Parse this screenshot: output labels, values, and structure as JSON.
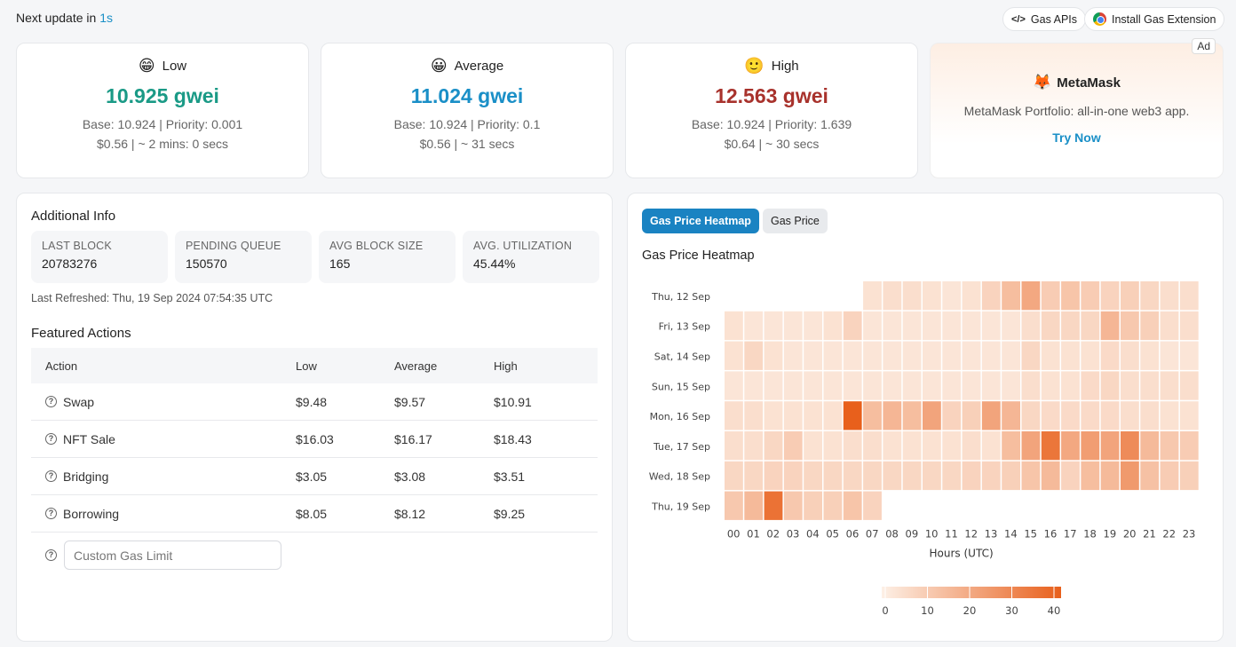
{
  "header": {
    "next_update_prefix": "Next update in",
    "next_update_value": "1s",
    "gas_apis_label": "Gas APIs",
    "extension_label": "Install Gas Extension"
  },
  "prices": [
    {
      "emoji": "😁",
      "label": "Low",
      "gwei": "10.925 gwei",
      "breakdown": "Base: 10.924 | Priority: 0.001",
      "cost_time": "$0.56 | ~ 2 mins: 0 secs",
      "color": "#1a9a86"
    },
    {
      "emoji": "😀",
      "label": "Average",
      "gwei": "11.024 gwei",
      "breakdown": "Base: 10.924 | Priority: 0.1",
      "cost_time": "$0.56 | ~ 31 secs",
      "color": "#1a8fc7"
    },
    {
      "emoji": "🙂",
      "label": "High",
      "gwei": "12.563 gwei",
      "breakdown": "Base: 10.924 | Priority: 1.639",
      "cost_time": "$0.64 | ~ 30 secs",
      "color": "#a8322c"
    }
  ],
  "ad": {
    "tag": "Ad",
    "icon": "🦊",
    "brand": "MetaMask",
    "description": "MetaMask Portfolio: all-in-one web3 app.",
    "cta": "Try Now"
  },
  "info": {
    "title": "Additional Info",
    "stats": [
      {
        "label": "LAST BLOCK",
        "value": "20783276"
      },
      {
        "label": "PENDING QUEUE",
        "value": "150570"
      },
      {
        "label": "AVG BLOCK SIZE",
        "value": "165"
      },
      {
        "label": "AVG. UTILIZATION",
        "value": "45.44%"
      }
    ],
    "last_refreshed": "Last Refreshed: Thu, 19 Sep 2024 07:54:35 UTC"
  },
  "actions": {
    "title": "Featured Actions",
    "columns": [
      "Action",
      "Low",
      "Average",
      "High"
    ],
    "rows": [
      {
        "name": "Swap",
        "low": "$9.48",
        "avg": "$9.57",
        "high": "$10.91"
      },
      {
        "name": "NFT Sale",
        "low": "$16.03",
        "avg": "$16.17",
        "high": "$18.43"
      },
      {
        "name": "Bridging",
        "low": "$3.05",
        "avg": "$3.08",
        "high": "$3.51"
      },
      {
        "name": "Borrowing",
        "low": "$8.05",
        "avg": "$8.12",
        "high": "$9.25"
      }
    ],
    "custom_placeholder": "Custom Gas Limit"
  },
  "tabs": {
    "heatmap": "Gas Price Heatmap",
    "price": "Gas Price"
  },
  "chart_data": {
    "type": "heatmap",
    "title": "Gas Price Heatmap",
    "xlabel": "Hours (UTC)",
    "ylabel": "",
    "x": [
      "00",
      "01",
      "02",
      "03",
      "04",
      "05",
      "06",
      "07",
      "08",
      "09",
      "10",
      "11",
      "12",
      "13",
      "14",
      "15",
      "16",
      "17",
      "18",
      "19",
      "20",
      "21",
      "22",
      "23"
    ],
    "y": [
      "Thu, 12 Sep",
      "Fri, 13 Sep",
      "Sat, 14 Sep",
      "Sun, 15 Sep",
      "Mon, 16 Sep",
      "Tue, 17 Sep",
      "Wed, 18 Sep",
      "Thu, 19 Sep"
    ],
    "values": [
      [
        null,
        null,
        null,
        null,
        null,
        null,
        null,
        4,
        5,
        5,
        4,
        3,
        4,
        8,
        14,
        20,
        10,
        12,
        10,
        8,
        9,
        7,
        5,
        5
      ],
      [
        4,
        3,
        3,
        3,
        3,
        4,
        8,
        3,
        3,
        3,
        3,
        3,
        3,
        3,
        3,
        5,
        7,
        7,
        7,
        16,
        11,
        9,
        5,
        5
      ],
      [
        4,
        7,
        4,
        3,
        3,
        3,
        3,
        3,
        3,
        3,
        3,
        3,
        3,
        3,
        3,
        7,
        4,
        4,
        4,
        6,
        5,
        4,
        3,
        3
      ],
      [
        3,
        3,
        3,
        3,
        3,
        3,
        3,
        3,
        3,
        3,
        3,
        3,
        3,
        3,
        3,
        5,
        4,
        4,
        6,
        7,
        5,
        5,
        5,
        5
      ],
      [
        5,
        5,
        4,
        4,
        4,
        4,
        42,
        14,
        16,
        14,
        21,
        8,
        9,
        21,
        16,
        7,
        6,
        6,
        6,
        6,
        5,
        5,
        4,
        4
      ],
      [
        5,
        5,
        7,
        10,
        4,
        4,
        5,
        5,
        4,
        4,
        4,
        4,
        5,
        4,
        14,
        21,
        34,
        20,
        23,
        21,
        28,
        15,
        11,
        10
      ],
      [
        7,
        7,
        8,
        8,
        7,
        7,
        7,
        7,
        7,
        7,
        7,
        7,
        8,
        8,
        9,
        12,
        15,
        8,
        14,
        15,
        24,
        13,
        10,
        9
      ],
      [
        11,
        15,
        35,
        11,
        9,
        9,
        12,
        8,
        null,
        null,
        null,
        null,
        null,
        null,
        null,
        null,
        null,
        null,
        null,
        null,
        null,
        null,
        null,
        null
      ]
    ],
    "scale": {
      "min": 0,
      "max": 40,
      "ticks": [
        0,
        10,
        20,
        30,
        40
      ],
      "color_low": "#fdf0e6",
      "color_high": "#e8601c"
    },
    "legend_position": "bottom"
  }
}
